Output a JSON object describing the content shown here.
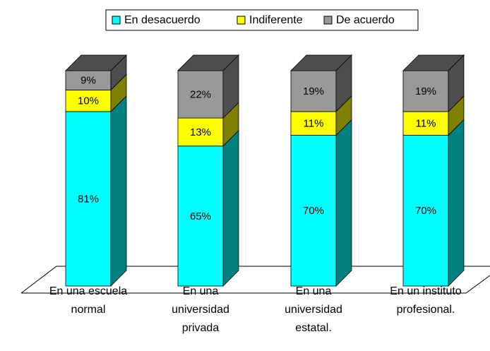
{
  "chart_data": {
    "type": "bar3d_stacked",
    "categories": [
      "En una escuela\nnormal",
      "En una\nuniversidad\nprivada",
      "En una\nuniversidad\nestatal.",
      "En un instituto\nprofesional."
    ],
    "series": [
      {
        "name": "En desacuerdo",
        "color": "#00ffff",
        "values": [
          81,
          65,
          70,
          70
        ],
        "value_labels": [
          "81%",
          "65%",
          "70%",
          "70%"
        ]
      },
      {
        "name": "Indiferente",
        "color": "#ffff00",
        "values": [
          10,
          13,
          11,
          11
        ],
        "value_labels": [
          "10%",
          "13%",
          "11%",
          "11%"
        ]
      },
      {
        "name": "De acuerdo",
        "color": "#999999",
        "values": [
          9,
          22,
          19,
          19
        ],
        "value_labels": [
          "9%",
          "22%",
          "19%",
          "19%"
        ]
      }
    ],
    "ylim": [
      0,
      100
    ],
    "legend": "top"
  }
}
